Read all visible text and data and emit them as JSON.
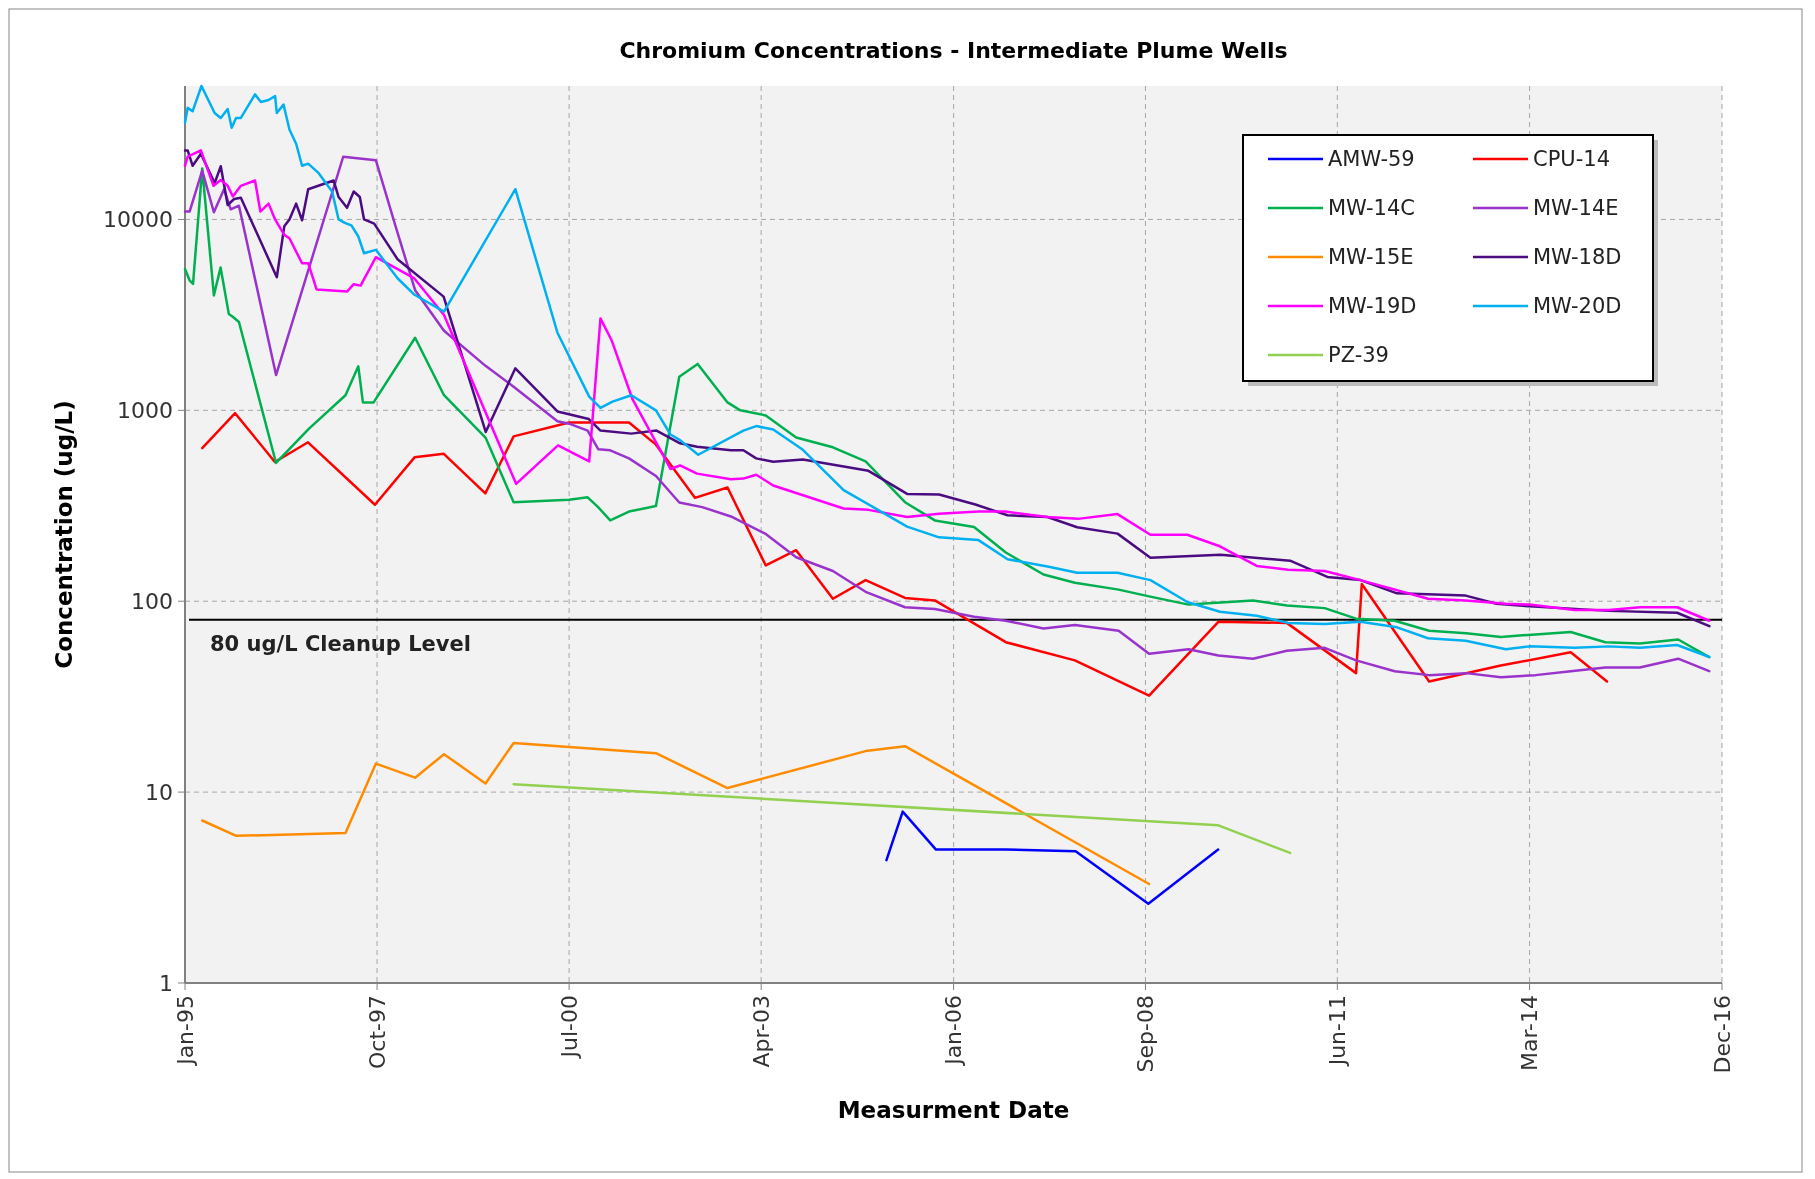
{
  "chart_data": {
    "type": "line",
    "title": "Chromium Concentrations - Intermediate Plume Wells",
    "xlabel": "Measurment Date",
    "ylabel": "Concentration (ug/L)",
    "log": "y",
    "grid": true,
    "legend": "top right",
    "marker": "none",
    "line_style": "solid",
    "xlim": [
      "1995-01-01",
      "2016-12-31"
    ],
    "xticks": [
      {
        "value": "1995-01-01",
        "label": "Jan-95"
      },
      {
        "value": "1997-10-01",
        "label": "Oct-97"
      },
      {
        "value": "2000-07-01",
        "label": "Jul-00"
      },
      {
        "value": "2003-04-01",
        "label": "Apr-03"
      },
      {
        "value": "2006-01-01",
        "label": "Jan-06"
      },
      {
        "value": "2008-09-30",
        "label": "Sep-08"
      },
      {
        "value": "2011-06-30",
        "label": "Jun-11"
      },
      {
        "value": "2014-03-31",
        "label": "Mar-14"
      },
      {
        "value": "2016-12-31",
        "label": "Dec-16"
      }
    ],
    "ylim": [
      1,
      50000
    ],
    "yticks": [
      1,
      10,
      100,
      1000,
      10000
    ],
    "ref_lines": [
      {
        "axis": "y",
        "value": 80,
        "label": "80 ug/L Cleanup Level",
        "color": "#000000",
        "line_style": "solid"
      }
    ],
    "series": [
      {
        "name": "AMW-59",
        "color": "#0000ff",
        "x": [
          "2005-01-15",
          "2005-04-10",
          "2005-10-01",
          "2006-10-01",
          "2007-10-01",
          "2008-10-15",
          "2009-10-15"
        ],
        "values": [
          4.4,
          7.9,
          5.0,
          5.0,
          4.9,
          2.6,
          5.0
        ]
      },
      {
        "name": "CPU-14",
        "color": "#ff0000",
        "x": [
          "1995-04-01",
          "1995-09-20",
          "1996-04-15",
          "1996-10-05",
          "1997-09-20",
          "1998-04-15",
          "1998-09-15",
          "1999-04-20",
          "1999-09-15",
          "2000-07-01",
          "2000-11-25",
          "2001-05-10",
          "2001-09-28",
          "2002-04-20",
          "2002-10-07",
          "2003-04-25",
          "2003-10-01",
          "2004-04-10",
          "2004-09-28",
          "2005-04-22",
          "2005-09-25",
          "2006-10-01",
          "2007-09-27",
          "2008-10-19",
          "2009-10-16",
          "2010-10-09",
          "2011-10-06",
          "2011-11-05",
          "2012-10-22",
          "2013-11-01",
          "2014-11-01",
          "2015-05-10"
        ],
        "values": [
          634,
          966,
          536,
          680,
          320,
          567,
          592,
          367,
          730,
          864,
          864,
          864,
          661,
          348,
          394,
          154,
          185,
          103,
          129,
          104,
          101,
          61,
          49,
          32,
          78,
          77,
          42,
          123,
          38,
          46,
          54,
          38
        ]
      },
      {
        "name": "MW-14C",
        "color": "#00b050",
        "x": [
          "1995-01-01",
          "1995-01-25",
          "1995-02-12",
          "1995-04-01",
          "1995-06-01",
          "1995-07-06",
          "1995-08-18",
          "1995-09-06",
          "1995-10-10",
          "1996-04-21",
          "1996-10-09",
          "1997-04-19",
          "1997-06-25",
          "1997-07-19",
          "1997-09-13",
          "1998-04-18",
          "1998-09-16",
          "1999-04-21",
          "1999-09-15",
          "2000-07-01",
          "2000-10-06",
          "2000-12-01",
          "2001-02-01",
          "2001-05-10",
          "2001-09-28",
          "2002-01-28",
          "2002-05-04",
          "2002-10-07",
          "2002-12-13",
          "2003-04-25",
          "2003-10-01",
          "2004-04-10",
          "2004-09-28",
          "2005-04-22",
          "2005-09-25",
          "2006-04-18",
          "2006-10-01",
          "2007-04-16",
          "2007-09-27",
          "2008-05-13",
          "2008-10-19",
          "2009-05-13",
          "2010-04-15",
          "2010-10-09",
          "2011-04-25",
          "2011-10-06",
          "2012-04-25",
          "2012-10-22",
          "2013-05-04",
          "2013-11-01",
          "2014-05-01",
          "2014-11-01",
          "2015-05-01",
          "2015-10-28",
          "2016-05-16",
          "2016-10-25"
        ],
        "values": [
          5500,
          4800,
          4600,
          18500,
          4000,
          5600,
          3200,
          3100,
          2900,
          530,
          800,
          1200,
          1700,
          1100,
          1100,
          2400,
          1200,
          720,
          330,
          340,
          350,
          310,
          265,
          295,
          315,
          1500,
          1750,
          1100,
          1000,
          940,
          720,
          640,
          540,
          330,
          265,
          245,
          180,
          138,
          125,
          115,
          106,
          96,
          101,
          95,
          92,
          81,
          79,
          70,
          68,
          65,
          67,
          69,
          61,
          60,
          63,
          51
        ]
      },
      {
        "name": "MW-14E",
        "color": "#9933cc",
        "x": [
          "1995-01-01",
          "1995-01-25",
          "1995-04-01",
          "1995-06-01",
          "1995-07-24",
          "1995-08-28",
          "1995-10-10",
          "1996-04-21",
          "1997-04-07",
          "1997-09-25",
          "1998-01-06",
          "1998-04-18",
          "1998-09-16",
          "1999-04-21",
          "1999-09-15",
          "2000-05-01",
          "2000-07-01",
          "2000-10-06",
          "2000-12-01",
          "2001-02-01",
          "2001-05-10",
          "2001-09-28",
          "2002-01-28",
          "2002-05-28",
          "2002-10-25",
          "2003-04-25",
          "2003-10-01",
          "2004-04-10",
          "2004-09-28",
          "2005-04-22",
          "2005-09-25",
          "2006-04-18",
          "2006-10-01",
          "2007-04-16",
          "2007-09-27",
          "2008-05-13",
          "2008-10-19",
          "2009-05-13",
          "2009-10-16",
          "2010-04-15",
          "2010-10-09",
          "2011-04-25",
          "2011-10-06",
          "2012-04-25",
          "2012-10-22",
          "2013-05-04",
          "2013-11-01",
          "2014-05-01",
          "2014-11-01",
          "2015-05-01",
          "2015-10-28",
          "2016-05-16",
          "2016-10-25"
        ],
        "values": [
          11000,
          11000,
          18000,
          10900,
          14400,
          11300,
          11800,
          1530,
          21300,
          20400,
          9200,
          4260,
          2610,
          1710,
          1330,
          876,
          851,
          783,
          625,
          617,
          560,
          453,
          329,
          311,
          278,
          225,
          170,
          144,
          112,
          93,
          91,
          83,
          79,
          72,
          75,
          70,
          53,
          56,
          52,
          50,
          55,
          57,
          49,
          43,
          41,
          42,
          40,
          41,
          43,
          45,
          45,
          50,
          43
        ]
      },
      {
        "name": "MW-15E",
        "color": "#ff8c00",
        "x": [
          "1995-04-01",
          "1995-09-26",
          "1997-04-19",
          "1997-09-25",
          "1998-04-18",
          "1998-09-16",
          "1999-04-21",
          "1999-09-15",
          "2001-09-28",
          "2002-10-07",
          "2004-09-28",
          "2005-04-22",
          "2008-10-19"
        ],
        "values": [
          7.1,
          5.9,
          6.1,
          14.1,
          11.9,
          15.8,
          11.1,
          18.1,
          16,
          10.5,
          16.4,
          17.4,
          3.3
        ]
      },
      {
        "name": "MW-18D",
        "color": "#4b0c82",
        "x": [
          "1995-01-01",
          "1995-01-15",
          "1995-02-10",
          "1995-03-25",
          "1995-06-05",
          "1995-07-07",
          "1995-08-12",
          "1995-09-15",
          "1995-10-20",
          "1996-04-25",
          "1996-06-03",
          "1996-06-30",
          "1996-08-04",
          "1996-09-04",
          "1996-10-06",
          "1997-02-16",
          "1997-03-14",
          "1997-04-27",
          "1997-06-01",
          "1997-07-03",
          "1997-07-25",
          "1997-09-16",
          "1998-01-16",
          "1998-09-14",
          "1999-04-22",
          "1999-09-24",
          "2000-05-01",
          "2000-10-12",
          "2000-12-12",
          "2001-05-22",
          "2001-10-01",
          "2002-02-01",
          "2002-05-01",
          "2002-10-25",
          "2002-12-29",
          "2003-03-06",
          "2003-06-03",
          "2003-11-05",
          "2004-10-13",
          "2005-05-03",
          "2005-10-17",
          "2006-04-25",
          "2006-10-10",
          "2007-05-07",
          "2007-10-09",
          "2008-05-07",
          "2008-10-26",
          "2009-10-27",
          "2010-10-26",
          "2011-05-09",
          "2011-10-29",
          "2012-05-07",
          "2013-05-01",
          "2013-10-09",
          "2014-03-30",
          "2015-05-20",
          "2016-05-10",
          "2016-10-26"
        ],
        "values": [
          23000,
          23000,
          19100,
          22100,
          15500,
          19000,
          11900,
          12800,
          13000,
          4980,
          9200,
          10000,
          12100,
          9900,
          14400,
          16000,
          13100,
          11500,
          14000,
          13100,
          10000,
          9500,
          6190,
          3940,
          770,
          1660,
          986,
          900,
          783,
          755,
          783,
          672,
          644,
          618,
          618,
          560,
          538,
          553,
          482,
          365,
          362,
          321,
          282,
          276,
          244,
          226,
          169,
          175,
          163,
          134,
          129,
          110,
          107,
          97,
          94,
          89,
          87,
          74
        ]
      },
      {
        "name": "MW-19D",
        "color": "#ff00ff",
        "x": [
          "1995-01-01",
          "1995-01-15",
          "1995-03-25",
          "1995-05-30",
          "1995-07-07",
          "1995-08-12",
          "1995-09-08",
          "1995-10-20",
          "1996-01-02",
          "1996-01-30",
          "1996-03-13",
          "1996-04-16",
          "1996-06-03",
          "1996-06-30",
          "1996-09-04",
          "1996-10-06",
          "1996-11-19",
          "1997-04-27",
          "1997-06-01",
          "1997-07-07",
          "1997-09-25",
          "1998-04-12",
          "1998-09-16",
          "1999-09-28",
          "2000-05-04",
          "2000-10-14",
          "2000-12-12",
          "2001-02-08",
          "2001-05-29",
          "2001-12-13",
          "2002-02-01",
          "2002-05-01",
          "2002-10-25",
          "2002-12-29",
          "2003-03-06",
          "2003-06-03",
          "2004-06-05",
          "2004-10-13",
          "2005-05-03",
          "2005-10-17",
          "2006-05-11",
          "2006-09-28",
          "2007-05-07",
          "2007-10-13",
          "2008-05-07",
          "2008-10-26",
          "2009-05-07",
          "2009-10-24",
          "2010-05-05",
          "2010-10-16",
          "2011-04-25",
          "2011-10-29",
          "2012-10-16",
          "2013-05-01",
          "2013-11-27",
          "2014-03-30",
          "2014-11-21",
          "2015-05-20",
          "2015-10-30",
          "2016-05-10",
          "2016-10-26"
        ],
        "values": [
          19100,
          21300,
          23000,
          15000,
          16100,
          15000,
          13200,
          15000,
          16000,
          11000,
          12100,
          10000,
          8300,
          7970,
          5890,
          5900,
          4300,
          4190,
          4580,
          4500,
          6340,
          4930,
          3160,
          412,
          655,
          540,
          3030,
          2330,
          1140,
          493,
          514,
          466,
          435,
          439,
          460,
          404,
          306,
          301,
          276,
          287,
          295,
          295,
          276,
          270,
          286,
          223,
          223,
          194,
          153,
          146,
          144,
          129,
          103,
          101,
          97,
          96,
          90,
          90,
          93,
          93,
          79
        ]
      },
      {
        "name": "MW-20D",
        "color": "#00b0f0",
        "x": [
          "1995-01-01",
          "1995-01-15",
          "1995-02-10",
          "1995-03-28",
          "1995-06-05",
          "1995-07-07",
          "1995-08-12",
          "1995-09-02",
          "1995-09-25",
          "1995-10-20",
          "1996-01-02",
          "1996-02-02",
          "1996-03-13",
          "1996-04-16",
          "1996-04-25",
          "1996-05-30",
          "1996-06-30",
          "1996-08-04",
          "1996-09-04",
          "1996-10-06",
          "1996-11-27",
          "1997-02-08",
          "1997-03-14",
          "1997-04-15",
          "1997-05-20",
          "1997-06-25",
          "1997-07-25",
          "1997-09-25",
          "1998-01-16",
          "1998-04-15",
          "1998-09-16",
          "1999-09-24",
          "2000-05-01",
          "2000-10-14",
          "2000-12-12",
          "2001-02-13",
          "2001-05-22",
          "2001-09-28",
          "2001-12-13",
          "2002-02-01",
          "2002-05-07",
          "2002-12-29",
          "2003-03-06",
          "2003-06-03",
          "2003-11-05",
          "2004-06-05",
          "2005-05-03",
          "2005-10-17",
          "2006-05-11",
          "2006-10-10",
          "2007-05-07",
          "2007-10-09",
          "2008-05-07",
          "2008-10-26",
          "2009-05-07",
          "2009-10-24",
          "2010-05-05",
          "2010-10-16",
          "2011-04-25",
          "2011-10-29",
          "2012-05-07",
          "2012-10-16",
          "2013-05-01",
          "2013-11-27",
          "2014-03-30",
          "2014-11-21",
          "2015-05-20",
          "2015-10-30",
          "2016-05-10",
          "2016-10-26"
        ],
        "values": [
          32100,
          38400,
          36900,
          50000,
          36100,
          34000,
          37900,
          30200,
          34000,
          34000,
          45200,
          41200,
          42200,
          44300,
          36100,
          40000,
          29600,
          24900,
          19100,
          19600,
          17600,
          14000,
          10000,
          9600,
          9300,
          8140,
          6650,
          6930,
          4920,
          4030,
          3290,
          14400,
          2550,
          1180,
          1030,
          1110,
          1200,
          1000,
          747,
          698,
          585,
          783,
          827,
          794,
          621,
          382,
          246,
          216,
          209,
          166,
          152,
          141,
          141,
          129,
          99,
          88,
          84,
          77,
          76,
          78,
          73,
          64,
          62,
          56,
          58,
          57,
          58,
          57,
          59,
          51
        ]
      },
      {
        "name": "PZ-39",
        "color": "#92d050",
        "x": [
          "1999-09-15",
          "2009-10-16",
          "2010-10-26"
        ],
        "values": [
          11,
          6.7,
          4.8
        ]
      }
    ]
  }
}
